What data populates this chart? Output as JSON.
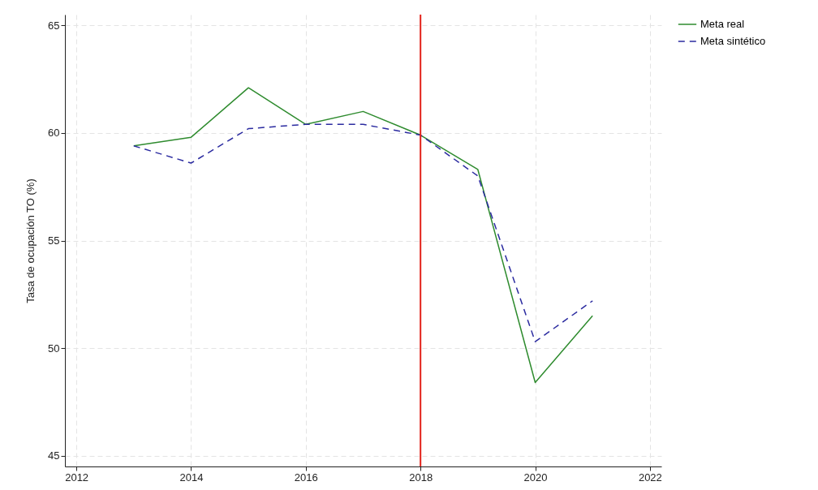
{
  "chart_data": {
    "type": "line",
    "ylabel": "Tasa de ocupación TO (%)",
    "x": [
      2013,
      2014,
      2015,
      2016,
      2017,
      2018,
      2019,
      2020,
      2021
    ],
    "series": [
      {
        "name": "Meta real",
        "color": "#2e8b2e",
        "line_style": "solid",
        "values": [
          59.4,
          59.8,
          62.1,
          60.4,
          61.0,
          59.9,
          58.3,
          48.4,
          51.5
        ]
      },
      {
        "name": "Meta sintético",
        "color": "#2b2ba0",
        "line_style": "dashed",
        "values": [
          59.4,
          58.6,
          60.2,
          60.4,
          60.4,
          59.9,
          58.0,
          50.3,
          52.2
        ]
      }
    ],
    "xlim": [
      2011.8,
      2022.2
    ],
    "xticks": [
      2012,
      2014,
      2016,
      2018,
      2020,
      2022
    ],
    "ylim": [
      44.5,
      65.5
    ],
    "yticks": [
      45,
      50,
      55,
      60,
      65
    ],
    "ref_lines": [
      {
        "axis": "x",
        "value": 2018,
        "color": "#e3231b"
      }
    ],
    "grid": true,
    "legend": "right",
    "marker": "none"
  }
}
